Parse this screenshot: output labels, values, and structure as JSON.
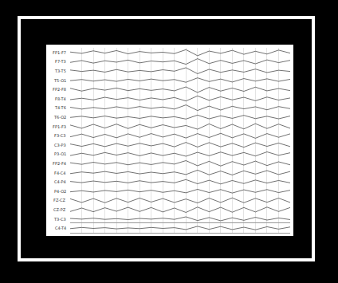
{
  "chart_data": {
    "type": "line",
    "color": "#333333",
    "grid": true,
    "tick_labels": false,
    "x": [
      0,
      1,
      2,
      3,
      4,
      5,
      6,
      7,
      8,
      9,
      10,
      11,
      12,
      13,
      14,
      15,
      16,
      17,
      18,
      19
    ],
    "xlim": [
      0,
      19
    ],
    "xticks": [
      0,
      1,
      2,
      3,
      4,
      5,
      6,
      7,
      8,
      9,
      10,
      11,
      12,
      13,
      14,
      15,
      16,
      17,
      18,
      19
    ],
    "ylim": [
      -100,
      100
    ],
    "series": [
      {
        "name": "FP1-F7",
        "values": [
          10,
          -20,
          35,
          -15,
          40,
          -30,
          20,
          -10,
          5,
          -25,
          60,
          -70,
          30,
          -20,
          45,
          -40,
          25,
          -35,
          50,
          -15
        ]
      },
      {
        "name": "F7-T3",
        "values": [
          -15,
          25,
          -30,
          20,
          -10,
          35,
          -25,
          15,
          -5,
          20,
          -55,
          65,
          -40,
          30,
          -35,
          25,
          -45,
          40,
          -20,
          30
        ]
      },
      {
        "name": "T3-T5",
        "values": [
          20,
          -10,
          15,
          -25,
          30,
          -20,
          10,
          -15,
          25,
          -5,
          70,
          -60,
          35,
          -30,
          20,
          -25,
          40,
          -35,
          15,
          -10
        ]
      },
      {
        "name": "T5-O1",
        "values": [
          -10,
          15,
          -20,
          10,
          -25,
          20,
          -15,
          25,
          -10,
          15,
          -45,
          50,
          -30,
          25,
          -40,
          35,
          -20,
          30,
          -25,
          20
        ]
      },
      {
        "name": "FP2-F8",
        "values": [
          25,
          -35,
          20,
          -15,
          30,
          -25,
          15,
          -20,
          10,
          -30,
          55,
          -65,
          45,
          -35,
          30,
          -40,
          50,
          -30,
          20,
          -25
        ]
      },
      {
        "name": "F8-T4",
        "values": [
          -20,
          10,
          -25,
          30,
          -15,
          20,
          -30,
          15,
          -20,
          25,
          -50,
          60,
          -35,
          40,
          -25,
          30,
          -45,
          35,
          -30,
          15
        ]
      },
      {
        "name": "T4-T6",
        "values": [
          15,
          -25,
          10,
          -20,
          25,
          -15,
          30,
          -10,
          20,
          -25,
          65,
          -55,
          40,
          -45,
          35,
          -20,
          25,
          -40,
          30,
          -15
        ]
      },
      {
        "name": "T6-O2",
        "values": [
          -5,
          20,
          -15,
          25,
          -20,
          10,
          -25,
          20,
          -15,
          10,
          -40,
          45,
          -35,
          30,
          -25,
          40,
          -30,
          20,
          -35,
          25
        ]
      },
      {
        "name": "FP1-F3",
        "values": [
          30,
          -40,
          45,
          -35,
          50,
          -45,
          40,
          -30,
          35,
          -25,
          20,
          -60,
          55,
          -50,
          45,
          -55,
          60,
          -45,
          50,
          -40
        ]
      },
      {
        "name": "F3-C3",
        "values": [
          -25,
          35,
          -40,
          30,
          -45,
          40,
          -35,
          45,
          -30,
          35,
          -50,
          45,
          -40,
          50,
          -45,
          40,
          -55,
          45,
          -35,
          40
        ]
      },
      {
        "name": "C3-P3",
        "values": [
          20,
          -30,
          25,
          -35,
          30,
          -25,
          35,
          -20,
          30,
          -40,
          55,
          -45,
          50,
          -40,
          35,
          -50,
          45,
          -30,
          40,
          -35
        ]
      },
      {
        "name": "P3-O1",
        "values": [
          -30,
          20,
          -25,
          35,
          -20,
          30,
          -35,
          25,
          -30,
          20,
          -45,
          40,
          -35,
          45,
          -30,
          35,
          -40,
          50,
          -25,
          30
        ]
      },
      {
        "name": "FP2-F4",
        "values": [
          15,
          -20,
          25,
          -15,
          20,
          -30,
          15,
          -25,
          20,
          -15,
          60,
          -50,
          45,
          -55,
          40,
          -35,
          50,
          -45,
          35,
          -30
        ]
      },
      {
        "name": "F4-C4",
        "values": [
          -20,
          15,
          -10,
          25,
          -15,
          20,
          -25,
          10,
          -20,
          15,
          -40,
          55,
          -45,
          35,
          -50,
          40,
          -30,
          45,
          -40,
          25
        ]
      },
      {
        "name": "C4-P4",
        "values": [
          10,
          -15,
          20,
          -10,
          15,
          -20,
          25,
          -15,
          10,
          -20,
          50,
          -40,
          35,
          -45,
          30,
          -35,
          40,
          -25,
          30,
          -20
        ]
      },
      {
        "name": "P4-O2",
        "values": [
          -15,
          10,
          -20,
          15,
          -10,
          25,
          -15,
          20,
          -25,
          10,
          -35,
          40,
          -30,
          35,
          -40,
          30,
          -25,
          35,
          -30,
          20
        ]
      },
      {
        "name": "FZ-CZ",
        "values": [
          35,
          -45,
          40,
          -50,
          45,
          -40,
          50,
          -35,
          40,
          -45,
          30,
          -55,
          50,
          -45,
          55,
          -50,
          45,
          -40,
          50,
          -45
        ]
      },
      {
        "name": "CZ-PZ",
        "values": [
          -40,
          35,
          -45,
          40,
          -35,
          50,
          -40,
          45,
          -50,
          35,
          -60,
          55,
          -45,
          50,
          -55,
          45,
          -50,
          55,
          -40,
          45
        ]
      },
      {
        "name": "T3-C3",
        "values": [
          10,
          -5,
          15,
          -10,
          5,
          -15,
          10,
          -5,
          15,
          -10,
          45,
          -35,
          30,
          -40,
          25,
          -30,
          35,
          -25,
          20,
          -15
        ]
      },
      {
        "name": "C4-T4",
        "values": [
          -10,
          15,
          -5,
          10,
          -15,
          5,
          -10,
          15,
          -5,
          10,
          -30,
          40,
          -25,
          35,
          -30,
          20,
          -35,
          30,
          -20,
          25
        ]
      }
    ]
  }
}
